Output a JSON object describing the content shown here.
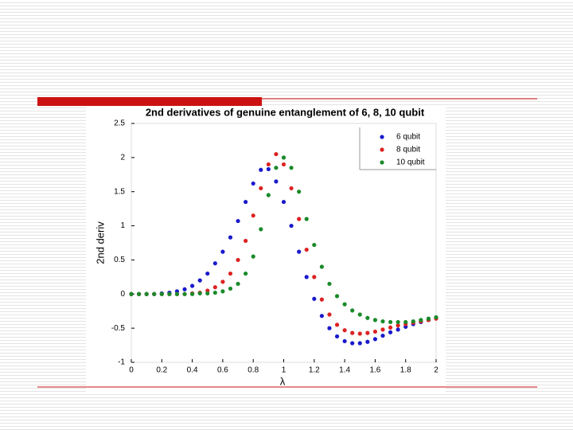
{
  "chart_data": {
    "type": "scatter",
    "title": "2nd derivatives of genuine entanglement of 6, 8, 10 qubit",
    "x_label": "λ",
    "y_label": "2nd deriv",
    "x": [
      0,
      0.05,
      0.1,
      0.15,
      0.2,
      0.25,
      0.3,
      0.35,
      0.4,
      0.45,
      0.5,
      0.55,
      0.6,
      0.65,
      0.7,
      0.75,
      0.8,
      0.85,
      0.9,
      0.95,
      1.0,
      1.05,
      1.1,
      1.15,
      1.2,
      1.25,
      1.3,
      1.35,
      1.4,
      1.45,
      1.5,
      1.55,
      1.6,
      1.65,
      1.7,
      1.75,
      1.8,
      1.85,
      1.9,
      1.95,
      2.0
    ],
    "series": [
      {
        "name": "6 qubit",
        "color": "#1a1acc",
        "values": [
          0,
          0,
          0,
          0,
          0.01,
          0.02,
          0.04,
          0.07,
          0.12,
          0.2,
          0.3,
          0.45,
          0.62,
          0.83,
          1.07,
          1.35,
          1.62,
          1.82,
          1.83,
          1.65,
          1.35,
          1.0,
          0.62,
          0.25,
          -0.07,
          -0.32,
          -0.5,
          -0.62,
          -0.69,
          -0.72,
          -0.72,
          -0.7,
          -0.66,
          -0.61,
          -0.56,
          -0.52,
          -0.48,
          -0.44,
          -0.41,
          -0.38,
          -0.35
        ]
      },
      {
        "name": "8 qubit",
        "color": "#dd2222",
        "values": [
          0,
          0,
          0,
          0,
          0,
          0,
          0,
          0,
          0.01,
          0.02,
          0.05,
          0.1,
          0.18,
          0.3,
          0.5,
          0.78,
          1.15,
          1.55,
          1.9,
          2.05,
          1.9,
          1.55,
          1.1,
          0.65,
          0.25,
          -0.08,
          -0.3,
          -0.45,
          -0.53,
          -0.57,
          -0.58,
          -0.57,
          -0.55,
          -0.52,
          -0.49,
          -0.46,
          -0.44,
          -0.42,
          -0.4,
          -0.38,
          -0.36
        ]
      },
      {
        "name": "10 qubit",
        "color": "#1a8a2a",
        "values": [
          0,
          0,
          0,
          0,
          0,
          0,
          0,
          0,
          0,
          0.01,
          0.01,
          0.02,
          0.04,
          0.08,
          0.15,
          0.3,
          0.55,
          0.95,
          1.45,
          1.85,
          2.0,
          1.85,
          1.5,
          1.1,
          0.72,
          0.4,
          0.15,
          -0.03,
          -0.15,
          -0.24,
          -0.3,
          -0.35,
          -0.38,
          -0.4,
          -0.41,
          -0.41,
          -0.41,
          -0.4,
          -0.38,
          -0.36,
          -0.34
        ]
      }
    ],
    "xlim": [
      0,
      2
    ],
    "xticks": [
      0,
      0.2,
      0.4,
      0.6,
      0.8,
      1,
      1.2,
      1.4,
      1.6,
      1.8,
      2
    ],
    "ylim": [
      -1,
      2.5
    ],
    "yticks": [
      2.5,
      2,
      1.5,
      1,
      0.5,
      0,
      -0.5,
      -1
    ],
    "legend": "upper right"
  }
}
